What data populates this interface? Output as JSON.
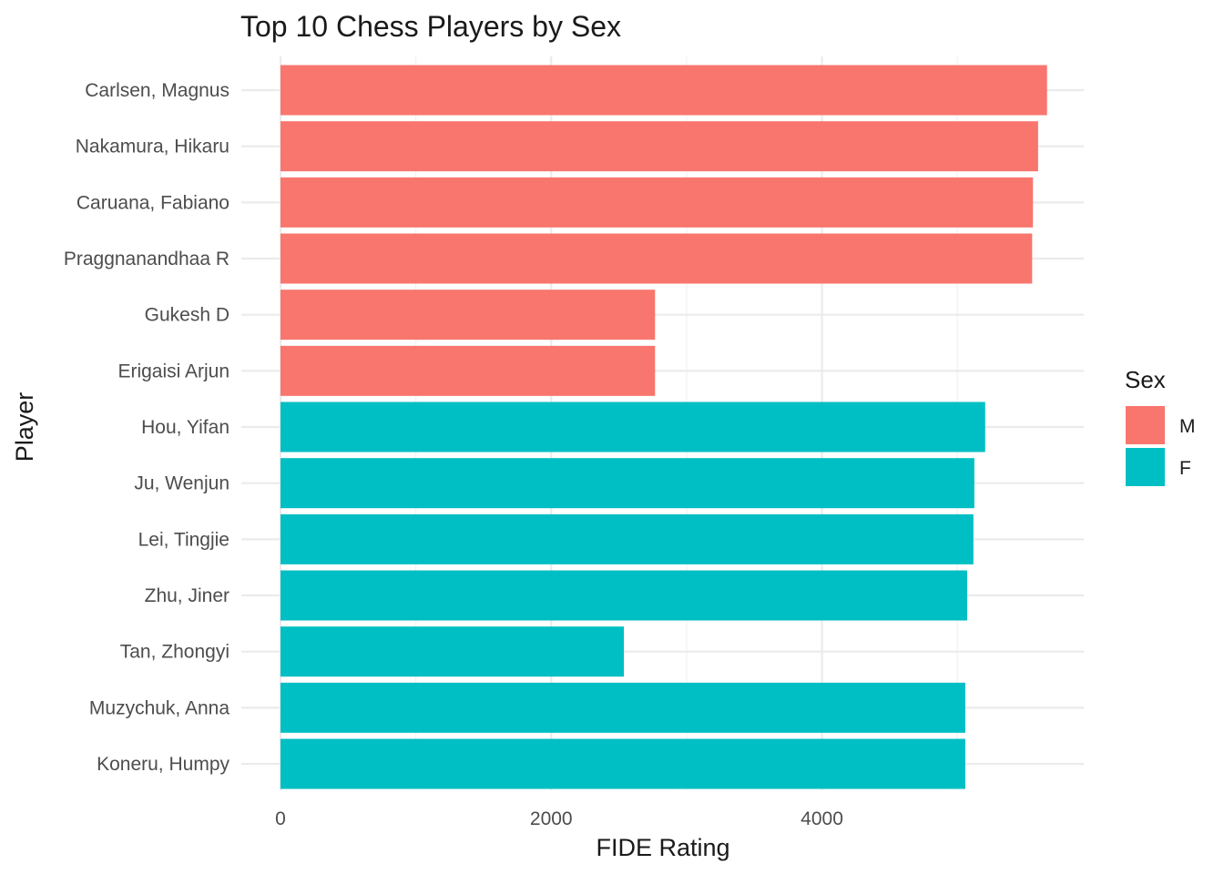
{
  "chart_data": {
    "type": "bar",
    "orientation": "horizontal",
    "title": "Top 10 Chess Players by Sex",
    "xlabel": "FIDE Rating",
    "ylabel": "Player",
    "xlim": [
      0,
      5950
    ],
    "x_ticks": [
      0,
      2000,
      4000
    ],
    "x_tick_labels": [
      "0",
      "2000",
      "4000"
    ],
    "grid": true,
    "legend": {
      "title": "Sex",
      "position": "right"
    },
    "categories": [
      "Carlsen, Magnus",
      "Nakamura, Hikaru",
      "Caruana, Fabiano",
      "Praggnanandhaa R",
      "Gukesh D",
      "Erigaisi Arjun",
      "Hou, Yifan",
      "Ju, Wenjun",
      "Lei, Tingjie",
      "Zhu, Jiner",
      "Tan, Zhongyi",
      "Muzychuk, Anna",
      "Koneru, Humpy"
    ],
    "values": [
      5663,
      5597,
      5559,
      5553,
      2767,
      2767,
      5206,
      5126,
      5119,
      5073,
      2537,
      5059,
      5059
    ],
    "groups": [
      "M",
      "M",
      "M",
      "M",
      "M",
      "M",
      "F",
      "F",
      "F",
      "F",
      "F",
      "F",
      "F"
    ],
    "series": [
      {
        "name": "M",
        "color": "#F8766D"
      },
      {
        "name": "F",
        "color": "#00BFC4"
      }
    ]
  }
}
